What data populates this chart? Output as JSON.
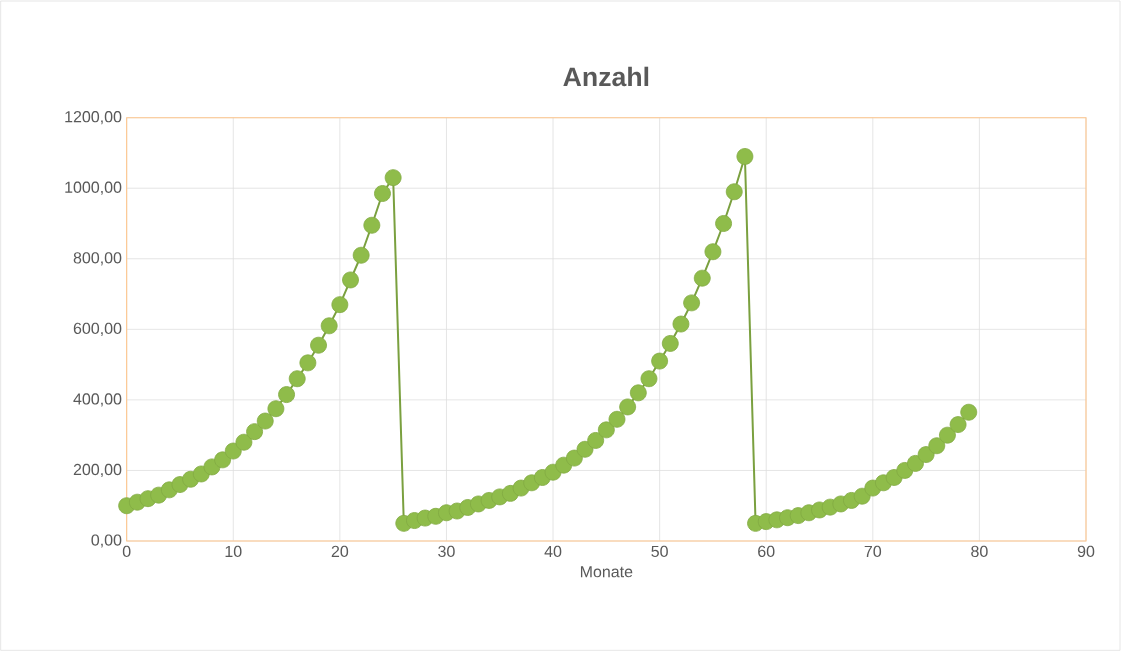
{
  "chart_data": {
    "type": "line",
    "title": "Anzahl",
    "xlabel": "Monate",
    "x": [
      0,
      1,
      2,
      3,
      4,
      5,
      6,
      7,
      8,
      9,
      10,
      11,
      12,
      13,
      14,
      15,
      16,
      17,
      18,
      19,
      20,
      21,
      22,
      23,
      24,
      25,
      26,
      27,
      28,
      29,
      30,
      31,
      32,
      33,
      34,
      35,
      36,
      37,
      38,
      39,
      40,
      41,
      42,
      43,
      44,
      45,
      46,
      47,
      48,
      49,
      50,
      51,
      52,
      53,
      54,
      55,
      56,
      57,
      58,
      59,
      60,
      61,
      62,
      63,
      64,
      65,
      66,
      67,
      68,
      69,
      70,
      71,
      72,
      73,
      74,
      75,
      76,
      77,
      78,
      79
    ],
    "series": [
      {
        "color": "#8fbc4a",
        "values": [
          100,
          110,
          120,
          130,
          145,
          160,
          175,
          190,
          210,
          230,
          255,
          280,
          310,
          340,
          375,
          415,
          460,
          505,
          555,
          610,
          670,
          740,
          810,
          895,
          985,
          1030,
          50,
          58,
          65,
          70,
          80,
          85,
          95,
          105,
          115,
          125,
          135,
          150,
          165,
          180,
          195,
          215,
          235,
          260,
          285,
          315,
          345,
          380,
          420,
          460,
          510,
          560,
          615,
          675,
          745,
          820,
          900,
          990,
          1090,
          50,
          55,
          60,
          66,
          72,
          80,
          88,
          96,
          105,
          115,
          127,
          150,
          165,
          180,
          200,
          220,
          245,
          270,
          300,
          330,
          365
        ]
      }
    ],
    "xlim": [
      0,
      90
    ],
    "xticks": [
      0,
      10,
      20,
      30,
      40,
      50,
      60,
      70,
      80,
      90
    ],
    "ylim": [
      0,
      1200
    ],
    "yticks": [
      {
        "value": 0,
        "label": "0,00"
      },
      {
        "value": 200,
        "label": "200,00"
      },
      {
        "value": 400,
        "label": "400,00"
      },
      {
        "value": 600,
        "label": "600,00"
      },
      {
        "value": 800,
        "label": "800,00"
      },
      {
        "value": 1000,
        "label": "1000,00"
      },
      {
        "value": 1200,
        "label": "1200,00"
      }
    ],
    "grid": true,
    "marker": "circle",
    "line_style": "solid",
    "legend": false
  }
}
